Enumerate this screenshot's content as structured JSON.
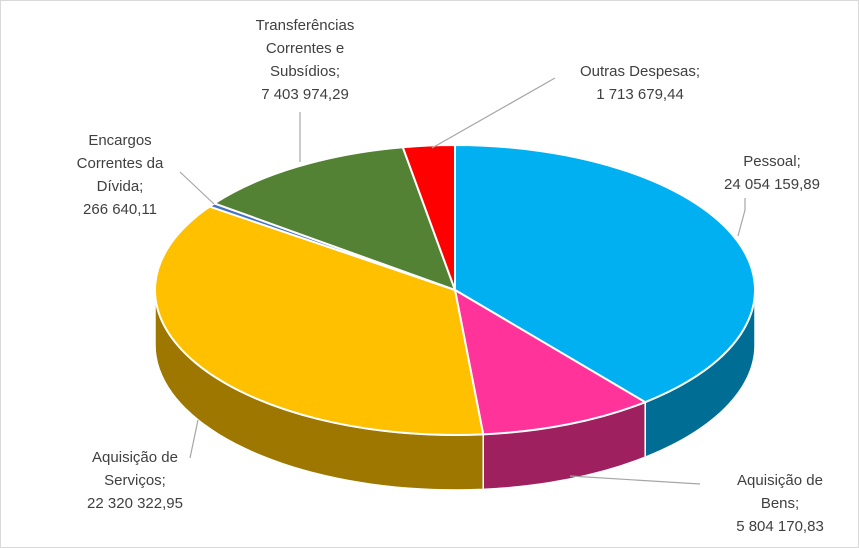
{
  "chart_data": {
    "type": "pie3d",
    "categories": [
      "Pessoal;",
      "Aquisição de Bens;",
      "Aquisição de Serviços;",
      "Encargos Correntes da Dívida;",
      "Transferências Correntes e Subsídios;",
      "Outras Despesas;"
    ],
    "values": [
      24054159.89,
      5804170.83,
      22320322.95,
      266640.11,
      7403974.29,
      1713679.44
    ],
    "value_labels": [
      "24 054 159,89",
      "5 804 170,83",
      "22 320 322,95",
      "266 640,11",
      "7 403 974,29",
      "1 713 679,44"
    ],
    "colors": [
      "#00b0f0",
      "#ff3399",
      "#ffc000",
      "#4472c4",
      "#548235",
      "#ff0000"
    ]
  }
}
